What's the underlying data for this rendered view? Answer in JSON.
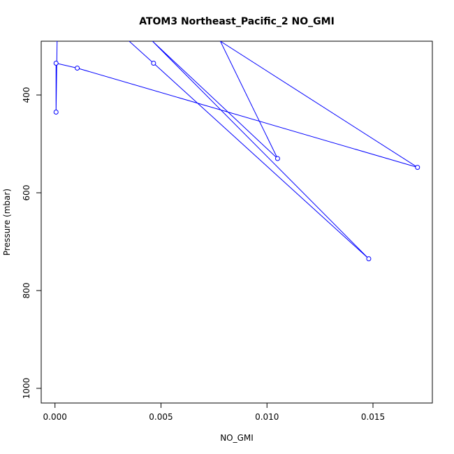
{
  "chart_data": {
    "type": "line",
    "title": "ATOM3 Northeast_Pacific_2 NO_GMI",
    "xlabel": "NO_GMI",
    "ylabel": "Pressure (mbar)",
    "xlim": [
      -0.00065,
      0.0178
    ],
    "ylim": [
      1030,
      290
    ],
    "y_reversed": true,
    "grid": false,
    "x_ticks": [
      0.0,
      0.005,
      0.01,
      0.015
    ],
    "x_tick_labels": [
      "0.000",
      "0.005",
      "0.010",
      "0.015"
    ],
    "y_ticks": [
      400,
      600,
      800,
      1000
    ],
    "y_tick_labels": [
      "400",
      "600",
      "800",
      "1000"
    ],
    "series": [
      {
        "color": "#0000ff",
        "x": [
          0.0035,
          0.00465,
          0.0148,
          0.0046,
          0.0105,
          0.0078,
          0.0171,
          0.00105,
          5e-05,
          5e-05,
          0.0001,
          5e-05
        ],
        "y": [
          290,
          335,
          735,
          290,
          530,
          290,
          548,
          345,
          335,
          435,
          290,
          290
        ],
        "markers": [
          false,
          true,
          true,
          false,
          true,
          false,
          true,
          true,
          true,
          true,
          false,
          false
        ]
      }
    ]
  }
}
